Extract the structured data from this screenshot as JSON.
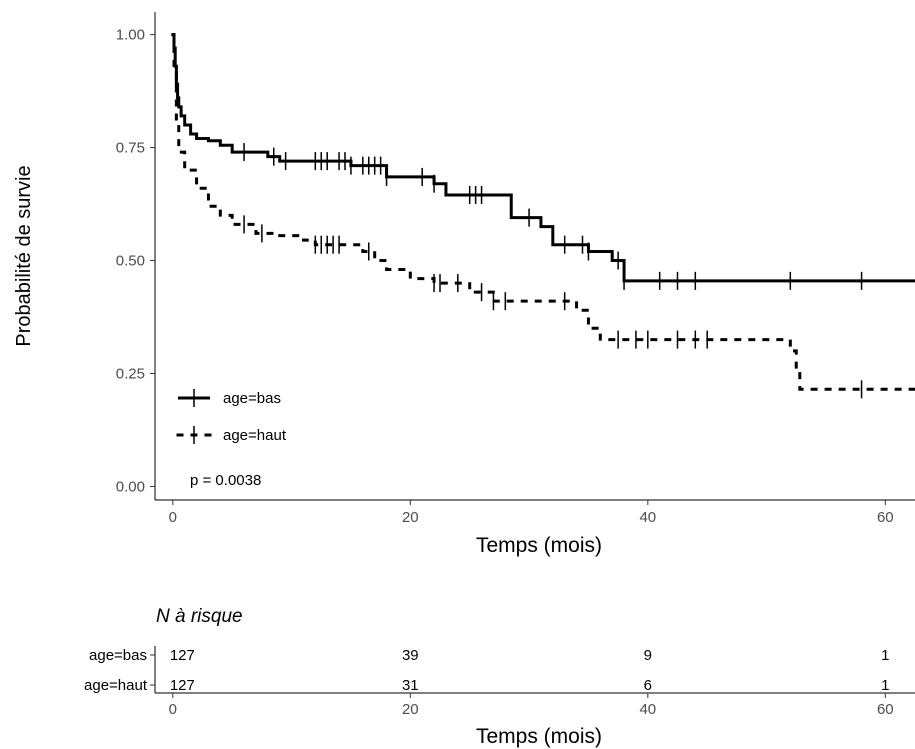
{
  "chart_data": [
    {
      "type": "line",
      "ylabel": "Probabilité de survie",
      "xlabel": "Temps (mois)",
      "xlim": [
        -1.5,
        62.5
      ],
      "ylim": [
        -0.03,
        1.05
      ],
      "xticks": [
        0,
        20,
        40,
        60
      ],
      "yticks": [
        0.0,
        0.25,
        0.5,
        0.75,
        1.0
      ],
      "ytick_labels": [
        "0.00",
        "0.25",
        "0.50",
        "0.75",
        "1.00"
      ],
      "annotation": "p = 0.0038",
      "legend_position": "bottom-left",
      "series": [
        {
          "name": "age=bas",
          "line_style": "solid",
          "color": "#000000",
          "steps": [
            [
              0,
              1.0
            ],
            [
              0.1,
              0.97
            ],
            [
              0.2,
              0.93
            ],
            [
              0.3,
              0.89
            ],
            [
              0.4,
              0.86
            ],
            [
              0.5,
              0.84
            ],
            [
              0.7,
              0.82
            ],
            [
              1,
              0.8
            ],
            [
              1.5,
              0.78
            ],
            [
              2,
              0.77
            ],
            [
              3,
              0.765
            ],
            [
              4,
              0.755
            ],
            [
              5,
              0.74
            ],
            [
              8,
              0.73
            ],
            [
              9,
              0.72
            ],
            [
              15,
              0.71
            ],
            [
              18,
              0.685
            ],
            [
              22,
              0.67
            ],
            [
              23,
              0.645
            ],
            [
              28.5,
              0.595
            ],
            [
              31,
              0.575
            ],
            [
              32,
              0.535
            ],
            [
              35,
              0.52
            ],
            [
              37,
              0.5
            ],
            [
              38,
              0.455
            ],
            [
              62.5,
              0.455
            ]
          ],
          "censored": [
            6,
            8.5,
            9.5,
            12,
            12.5,
            13,
            14,
            14.5,
            15,
            16,
            16.5,
            17,
            17.5,
            18,
            21,
            22,
            25,
            25.5,
            26,
            30,
            33,
            34.5,
            35,
            37.5,
            38,
            41,
            42.5,
            44,
            52,
            58
          ]
        },
        {
          "name": "age=haut",
          "line_style": "dotted",
          "color": "#000000",
          "steps": [
            [
              0,
              1.0
            ],
            [
              0.1,
              0.92
            ],
            [
              0.3,
              0.8
            ],
            [
              0.5,
              0.74
            ],
            [
              1,
              0.7
            ],
            [
              2,
              0.66
            ],
            [
              3,
              0.62
            ],
            [
              4,
              0.6
            ],
            [
              5,
              0.58
            ],
            [
              7,
              0.56
            ],
            [
              9,
              0.555
            ],
            [
              11,
              0.545
            ],
            [
              12,
              0.535
            ],
            [
              16,
              0.52
            ],
            [
              17,
              0.5
            ],
            [
              18,
              0.48
            ],
            [
              20,
              0.46
            ],
            [
              22,
              0.45
            ],
            [
              25,
              0.43
            ],
            [
              27,
              0.41
            ],
            [
              34,
              0.39
            ],
            [
              35,
              0.35
            ],
            [
              36,
              0.325
            ],
            [
              52,
              0.3
            ],
            [
              52.5,
              0.25
            ],
            [
              52.8,
              0.215
            ],
            [
              62.5,
              0.215
            ]
          ],
          "censored": [
            6,
            7.5,
            12,
            12.5,
            13,
            13.5,
            14,
            16.5,
            22,
            22.5,
            24,
            26,
            27,
            28,
            33,
            37.5,
            39,
            40,
            42.5,
            44,
            45,
            58
          ]
        }
      ]
    },
    {
      "type": "table",
      "title": "N à risque",
      "xlabel": "Temps (mois)",
      "xticks": [
        0,
        20,
        40,
        60
      ],
      "rows": [
        {
          "label": "age=bas",
          "values": [
            "127",
            "39",
            "9",
            "1"
          ]
        },
        {
          "label": "age=haut",
          "values": [
            "127",
            "31",
            "6",
            "1"
          ]
        }
      ]
    }
  ]
}
